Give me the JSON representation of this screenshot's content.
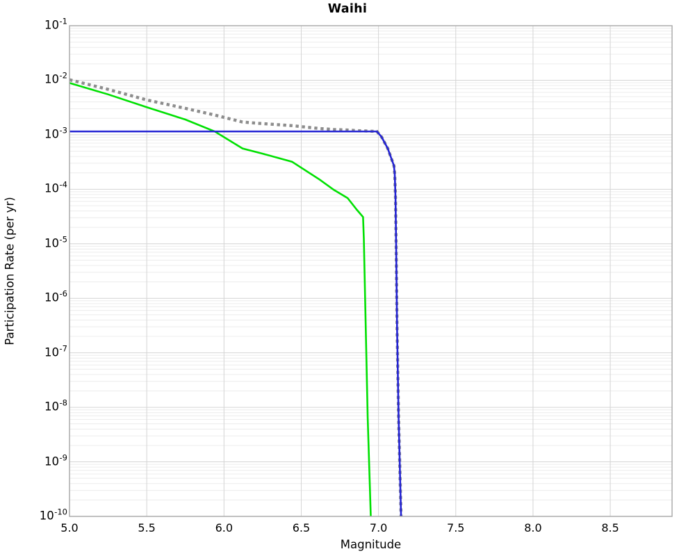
{
  "chart_data": {
    "type": "line",
    "title": "Waihi",
    "xlabel": "Magnitude",
    "ylabel": "Participation Rate (per yr)",
    "xlim": [
      5.0,
      8.9
    ],
    "ylim": [
      1e-10,
      0.1
    ],
    "ylim_log10": [
      -10,
      -1
    ],
    "y_scale": "log",
    "grid": {
      "major": true,
      "minor_y": true,
      "legend": "none"
    },
    "xticks": [
      5.0,
      5.5,
      6.0,
      6.5,
      7.0,
      7.5,
      8.0,
      8.5
    ],
    "xtick_labels": [
      "5.0",
      "5.5",
      "6.0",
      "6.5",
      "7.0",
      "7.5",
      "8.0",
      "8.5"
    ],
    "ytick_exponents": [
      -1,
      -2,
      -3,
      -4,
      -5,
      -6,
      -7,
      -8,
      -9,
      -10
    ],
    "ytick_base": "10",
    "series": [
      {
        "name": "green-line",
        "style": "solid",
        "color": "#00e002",
        "width": 2.6,
        "points": [
          [
            5.0,
            0.0089
          ],
          [
            5.25,
            0.0055
          ],
          [
            5.5,
            0.0032
          ],
          [
            5.75,
            0.0019
          ],
          [
            5.94,
            0.00115
          ],
          [
            6.12,
            0.00056
          ],
          [
            6.25,
            0.00045
          ],
          [
            6.44,
            0.00032
          ],
          [
            6.62,
            0.00015
          ],
          [
            6.71,
            9.8e-05
          ],
          [
            6.8,
            6.9e-05
          ],
          [
            6.86,
            4.2e-05
          ],
          [
            6.9,
            3.1e-05
          ],
          [
            6.905,
            1.25e-05
          ],
          [
            6.93,
            6.5e-09
          ],
          [
            6.95,
            1e-10
          ]
        ]
      },
      {
        "name": "gray-dotted-line",
        "style": "dotted",
        "color": "#8d8d8d",
        "width": 4.4,
        "points": [
          [
            5.0,
            0.0102
          ],
          [
            5.25,
            0.0068
          ],
          [
            5.5,
            0.00435
          ],
          [
            5.75,
            0.00305
          ],
          [
            5.94,
            0.0023
          ],
          [
            6.12,
            0.00171
          ],
          [
            6.25,
            0.0016
          ],
          [
            6.44,
            0.00147
          ],
          [
            6.62,
            0.0013
          ],
          [
            6.71,
            0.00125
          ],
          [
            6.8,
            0.00122
          ],
          [
            6.86,
            0.00119
          ],
          [
            6.9,
            0.00118
          ],
          [
            6.95,
            0.00116
          ],
          [
            6.99,
            0.00115
          ],
          [
            7.02,
            0.00091
          ],
          [
            7.06,
            0.00056
          ],
          [
            7.1,
            0.00027
          ],
          [
            7.105,
            0.00019
          ],
          [
            7.11,
            7.2e-05
          ],
          [
            7.114,
            1e-05
          ],
          [
            7.12,
            3e-07
          ],
          [
            7.13,
            6.6e-09
          ],
          [
            7.146,
            1e-10
          ]
        ]
      },
      {
        "name": "blue-line",
        "style": "solid",
        "color": "#2323d3",
        "width": 2.6,
        "points": [
          [
            5.0,
            0.00115
          ],
          [
            6.99,
            0.00115
          ],
          [
            7.02,
            0.00091
          ],
          [
            7.06,
            0.00056
          ],
          [
            7.1,
            0.00027
          ],
          [
            7.105,
            0.00019
          ],
          [
            7.11,
            7.2e-05
          ],
          [
            7.114,
            1e-05
          ],
          [
            7.12,
            3e-07
          ],
          [
            7.13,
            6.6e-09
          ],
          [
            7.146,
            1e-10
          ]
        ]
      }
    ]
  },
  "colors": {
    "background": "#ffffff",
    "grid_major": "#d4d4d4",
    "grid_minor": "#ececec",
    "frame": "#a6a6a6",
    "text": "#000000"
  }
}
